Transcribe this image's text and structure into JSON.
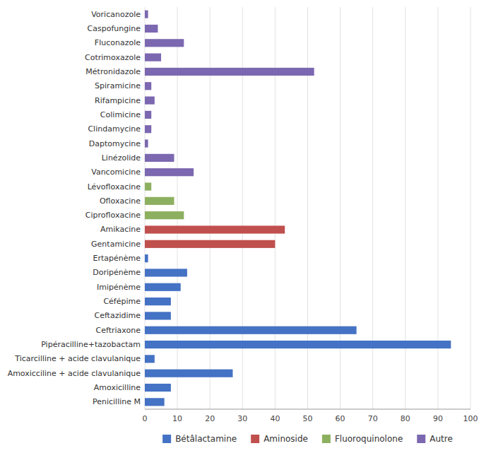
{
  "chart_data": {
    "type": "bar",
    "orientation": "horizontal",
    "stacked": true,
    "categories": [
      "Voricanozole",
      "Caspofungine",
      "Fluconazole",
      "Cotrimoxazole",
      "Métronidazole",
      "Spiramicine",
      "Rifampicine",
      "Colimicine",
      "Clindamycine",
      "Daptomycine",
      "Linézolide",
      "Vancomicine",
      "Lévofloxacine",
      "Ofloxacine",
      "Ciprofloxacine",
      "Amikacine",
      "Gentamicine",
      "Ertapénème",
      "Doripénème",
      "Imipénème",
      "Céfépime",
      "Ceftazidime",
      "Ceftriaxone",
      "Pipéracilline+tazobactam",
      "Ticarcilline + acide clavulanique",
      "Amoxicciline + acide clavulanique",
      "Amoxicilline",
      "Penicilline M"
    ],
    "series": [
      {
        "name": "Bétâlactamine",
        "color": "#4472C4",
        "values": [
          null,
          null,
          null,
          null,
          null,
          null,
          null,
          null,
          null,
          null,
          null,
          null,
          null,
          null,
          null,
          null,
          null,
          1,
          13,
          11,
          8,
          8,
          65,
          94,
          3,
          27,
          8,
          6
        ]
      },
      {
        "name": "Aminoside",
        "color": "#C0504D",
        "values": [
          null,
          null,
          null,
          null,
          null,
          null,
          null,
          null,
          null,
          null,
          null,
          null,
          null,
          null,
          null,
          43,
          40,
          null,
          null,
          null,
          null,
          null,
          null,
          null,
          null,
          null,
          null,
          null
        ]
      },
      {
        "name": "Fluoroquinolone",
        "color": "#8DB060",
        "values": [
          null,
          null,
          null,
          null,
          null,
          null,
          null,
          null,
          null,
          null,
          null,
          null,
          2,
          9,
          12,
          null,
          null,
          null,
          null,
          null,
          null,
          null,
          null,
          null,
          null,
          null,
          null,
          null
        ]
      },
      {
        "name": "Autre",
        "color": "#7B68B0",
        "values": [
          1,
          4,
          12,
          5,
          52,
          2,
          3,
          2,
          2,
          1,
          9,
          15,
          null,
          null,
          null,
          null,
          null,
          null,
          null,
          null,
          null,
          null,
          null,
          null,
          null,
          null,
          null,
          null
        ]
      }
    ],
    "xlim": [
      0,
      100
    ],
    "xticks": [
      0,
      10,
      20,
      30,
      40,
      50,
      60,
      70,
      80,
      90,
      100
    ],
    "grid": true,
    "legend": "bottom"
  }
}
